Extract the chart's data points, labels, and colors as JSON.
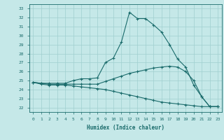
{
  "xlabel": "Humidex (Indice chaleur)",
  "bg_color": "#c5e8e8",
  "grid_color": "#9fcfcf",
  "line_color": "#1a6b6b",
  "xlim": [
    -0.5,
    23.5
  ],
  "ylim": [
    21.5,
    33.5
  ],
  "yticks": [
    22,
    23,
    24,
    25,
    26,
    27,
    28,
    29,
    30,
    31,
    32,
    33
  ],
  "xticks": [
    0,
    1,
    2,
    3,
    4,
    5,
    6,
    7,
    8,
    9,
    10,
    11,
    12,
    13,
    14,
    15,
    16,
    17,
    18,
    19,
    20,
    21,
    22,
    23
  ],
  "series": [
    [
      24.8,
      24.7,
      24.7,
      24.7,
      24.7,
      25.0,
      25.2,
      25.2,
      25.3,
      27.0,
      27.5,
      29.3,
      32.6,
      31.9,
      31.9,
      31.2,
      30.4,
      29.0,
      27.4,
      26.5,
      24.5,
      23.2,
      22.1,
      22.1
    ],
    [
      24.8,
      24.7,
      24.6,
      24.6,
      24.6,
      24.6,
      24.6,
      24.6,
      24.6,
      24.9,
      25.2,
      25.5,
      25.8,
      26.0,
      26.2,
      26.4,
      26.5,
      26.6,
      26.5,
      26.0,
      25.0,
      23.2,
      22.1,
      22.1
    ],
    [
      24.8,
      24.6,
      24.5,
      24.5,
      24.5,
      24.4,
      24.3,
      24.2,
      24.1,
      24.0,
      23.8,
      23.6,
      23.4,
      23.2,
      23.0,
      22.8,
      22.6,
      22.5,
      22.4,
      22.3,
      22.2,
      22.1,
      22.1,
      22.1
    ]
  ]
}
